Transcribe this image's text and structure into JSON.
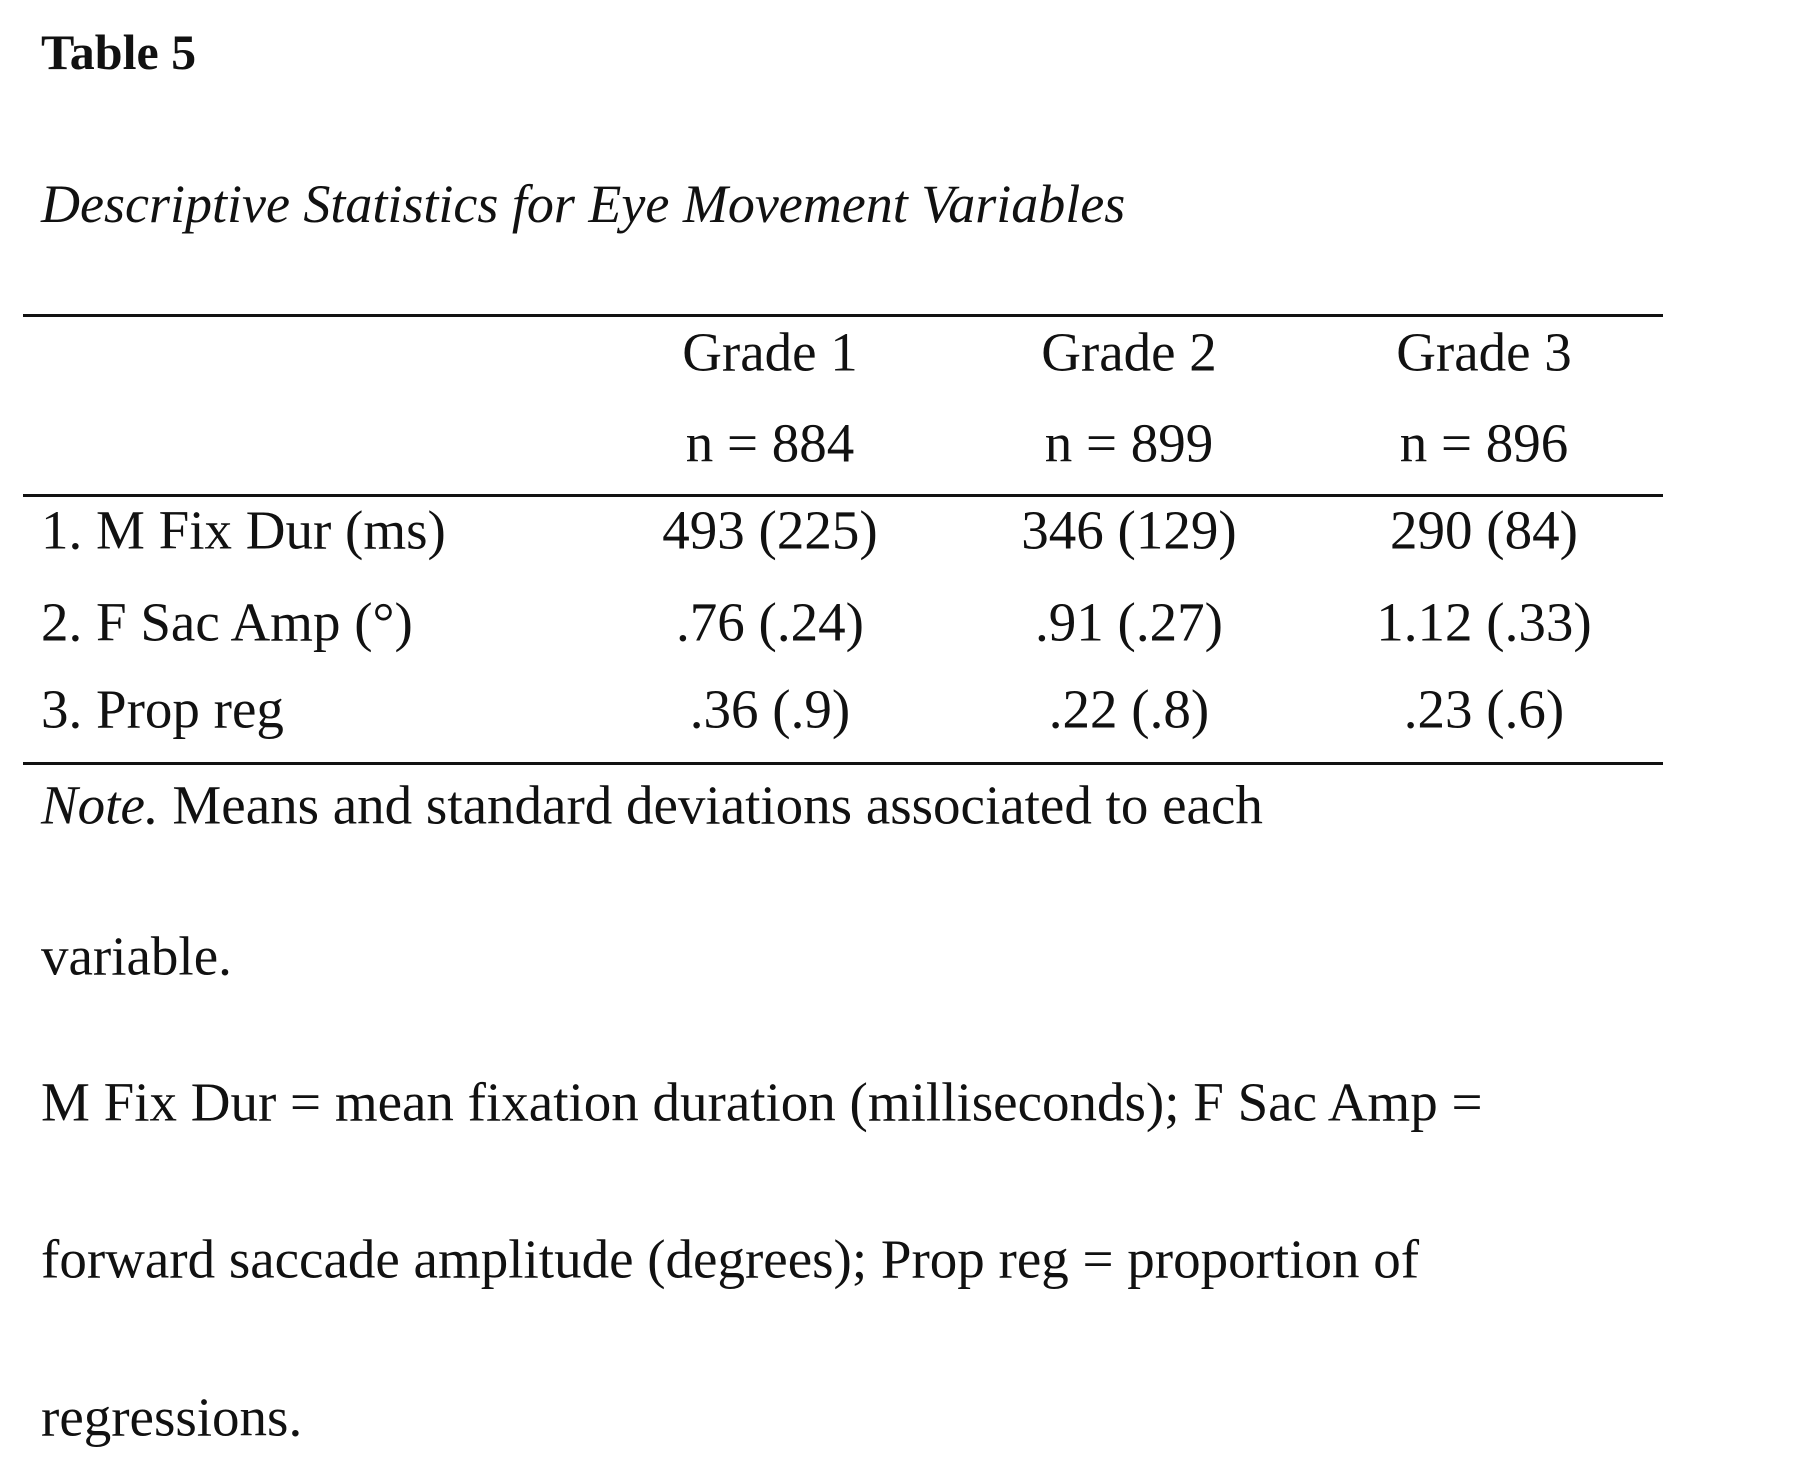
{
  "header": {
    "title": "Table 5",
    "subtitle": "Descriptive Statistics  for Eye Movement Variables"
  },
  "table": {
    "headers": [
      "Grade 1",
      "Grade 2",
      "Grade 3"
    ],
    "sample_sizes": [
      "n = 884",
      "n = 899",
      "n = 896"
    ],
    "rows": [
      [
        "1. M Fix Dur (ms)",
        "493 (225)",
        "346 (129)",
        "290 (84)"
      ],
      [
        "2. F Sac Amp (°)",
        ".76 (.24)",
        ".91 (.27)",
        "1.12 (.33)"
      ],
      [
        "3. Prop reg",
        ".36 (.9)",
        ".22 (.8)",
        ".23 (.6)"
      ]
    ]
  },
  "note": {
    "label": "Note.",
    "lines": [
      "Means and standard deviations associated to each",
      "variable.",
      "M Fix Dur = mean fixation duration (milliseconds);  F Sac Amp =",
      "forward saccade amplitude (degrees); Prop reg = proportion of",
      "regressions."
    ]
  }
}
